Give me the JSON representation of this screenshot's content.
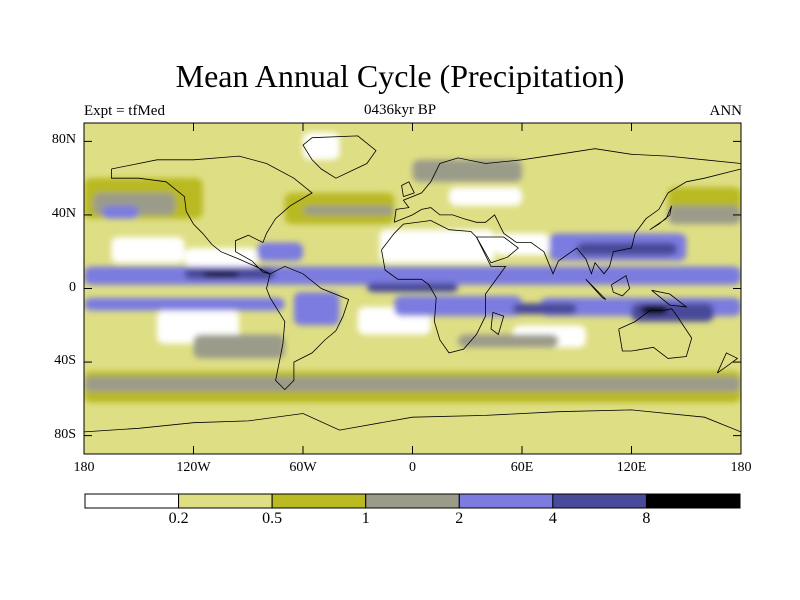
{
  "header": {
    "title": "Mean Annual Cycle (Precipitation)",
    "left_label": "Expt = tfMed",
    "center_label": "0436kyr BP",
    "right_label": "ANN"
  },
  "map": {
    "projection": "cylindrical-equidistant",
    "lon_range": [
      -180,
      180
    ],
    "lat_range": [
      -90,
      90
    ],
    "y_ticks": [
      {
        "label": "80N",
        "lat": 80
      },
      {
        "label": "40N",
        "lat": 40
      },
      {
        "label": "0",
        "lat": 0
      },
      {
        "label": "40S",
        "lat": -40
      },
      {
        "label": "80S",
        "lat": -80
      }
    ],
    "x_ticks": [
      {
        "label": "180",
        "lon": -180
      },
      {
        "label": "120W",
        "lon": -120
      },
      {
        "label": "60W",
        "lon": -60
      },
      {
        "label": "0",
        "lon": 0
      },
      {
        "label": "60E",
        "lon": 60
      },
      {
        "label": "120E",
        "lon": 120
      },
      {
        "label": "180",
        "lon": 180
      }
    ]
  },
  "colorbar": {
    "colors": [
      "#ffffff",
      "#dede84",
      "#b9b922",
      "#9b9b8a",
      "#7b7be0",
      "#4a4a9a",
      "#000000"
    ],
    "labels": [
      "0.2",
      "0.5",
      "1",
      "2",
      "4",
      "8"
    ]
  }
}
